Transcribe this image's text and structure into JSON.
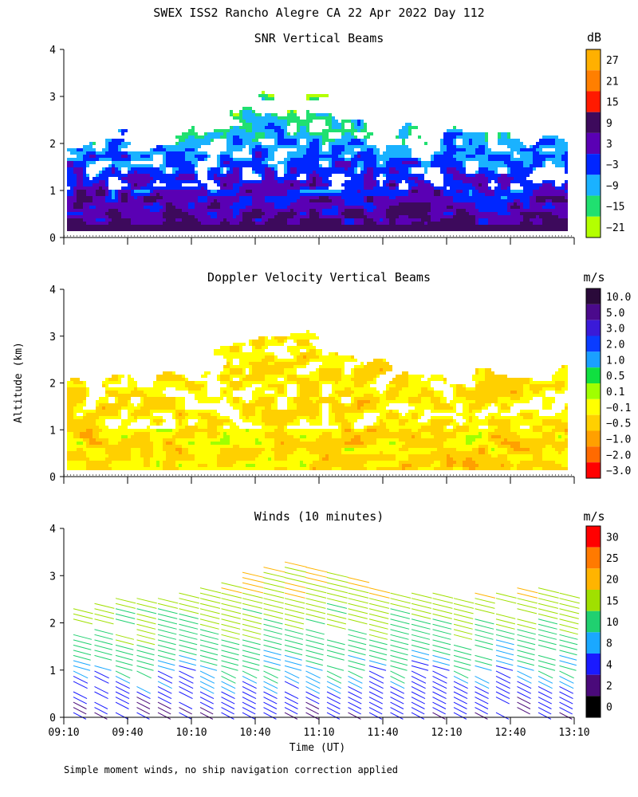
{
  "figure_title": "SWEX ISS2 Rancho Alegre CA  22 Apr 2022 Day 112",
  "footnote": "Simple moment winds, no ship navigation correction applied",
  "shared_axes": {
    "ylabel": "Altitude (km)",
    "xlabel": "Time (UT)",
    "x_range": [
      "09:10",
      "13:10"
    ],
    "x_tick_labels": [
      "09:10",
      "09:40",
      "10:10",
      "10:40",
      "11:10",
      "11:40",
      "12:10",
      "12:40",
      "13:10"
    ],
    "y_range": [
      0,
      4
    ],
    "y_tick_labels": [
      "0",
      "1",
      "2",
      "3",
      "4"
    ]
  },
  "chart_data": [
    {
      "type": "heatmap",
      "title": "SNR Vertical Beams",
      "units": "dB",
      "x_range": [
        "09:10",
        "13:10"
      ],
      "y_range": [
        0,
        4
      ],
      "colorbar": {
        "labels": [
          "27",
          "21",
          "15",
          "9",
          "3",
          "−3",
          "−9",
          "−15",
          "−21"
        ],
        "colors": [
          "#ffb000",
          "#ff7f00",
          "#ff1a00",
          "#3d0a5c",
          "#5a00b4",
          "#0026ff",
          "#1ab2ff",
          "#20e070",
          "#b4ff00"
        ]
      }
    },
    {
      "type": "heatmap",
      "title": "Doppler Velocity Vertical Beams",
      "units": "m/s",
      "x_range": [
        "09:10",
        "13:10"
      ],
      "y_range": [
        0,
        4
      ],
      "colorbar": {
        "labels": [
          "10.0",
          "5.0",
          "3.0",
          "2.0",
          "1.0",
          "0.5",
          "0.1",
          "−0.1",
          "−0.5",
          "−1.0",
          "−2.0",
          "−3.0"
        ],
        "colors": [
          "#2a0a3a",
          "#4b0a8c",
          "#3a1ad8",
          "#0a3cff",
          "#1aa0ff",
          "#10e040",
          "#a0ff00",
          "#ffff00",
          "#ffd000",
          "#ffa000",
          "#ff6a00",
          "#ff0000"
        ]
      }
    },
    {
      "type": "wind-barbs",
      "title": "Winds (10 minutes)",
      "units": "m/s",
      "x_range": [
        "09:10",
        "13:10"
      ],
      "y_range": [
        0,
        4
      ],
      "colorbar": {
        "labels": [
          "30",
          "25",
          "20",
          "15",
          "10",
          "8",
          "4",
          "2",
          "0"
        ],
        "colors": [
          "#ff0000",
          "#ff7a00",
          "#ffb400",
          "#a0e000",
          "#20d070",
          "#1aa8ff",
          "#1a1aff",
          "#4a0a7a",
          "#000000"
        ]
      }
    }
  ]
}
